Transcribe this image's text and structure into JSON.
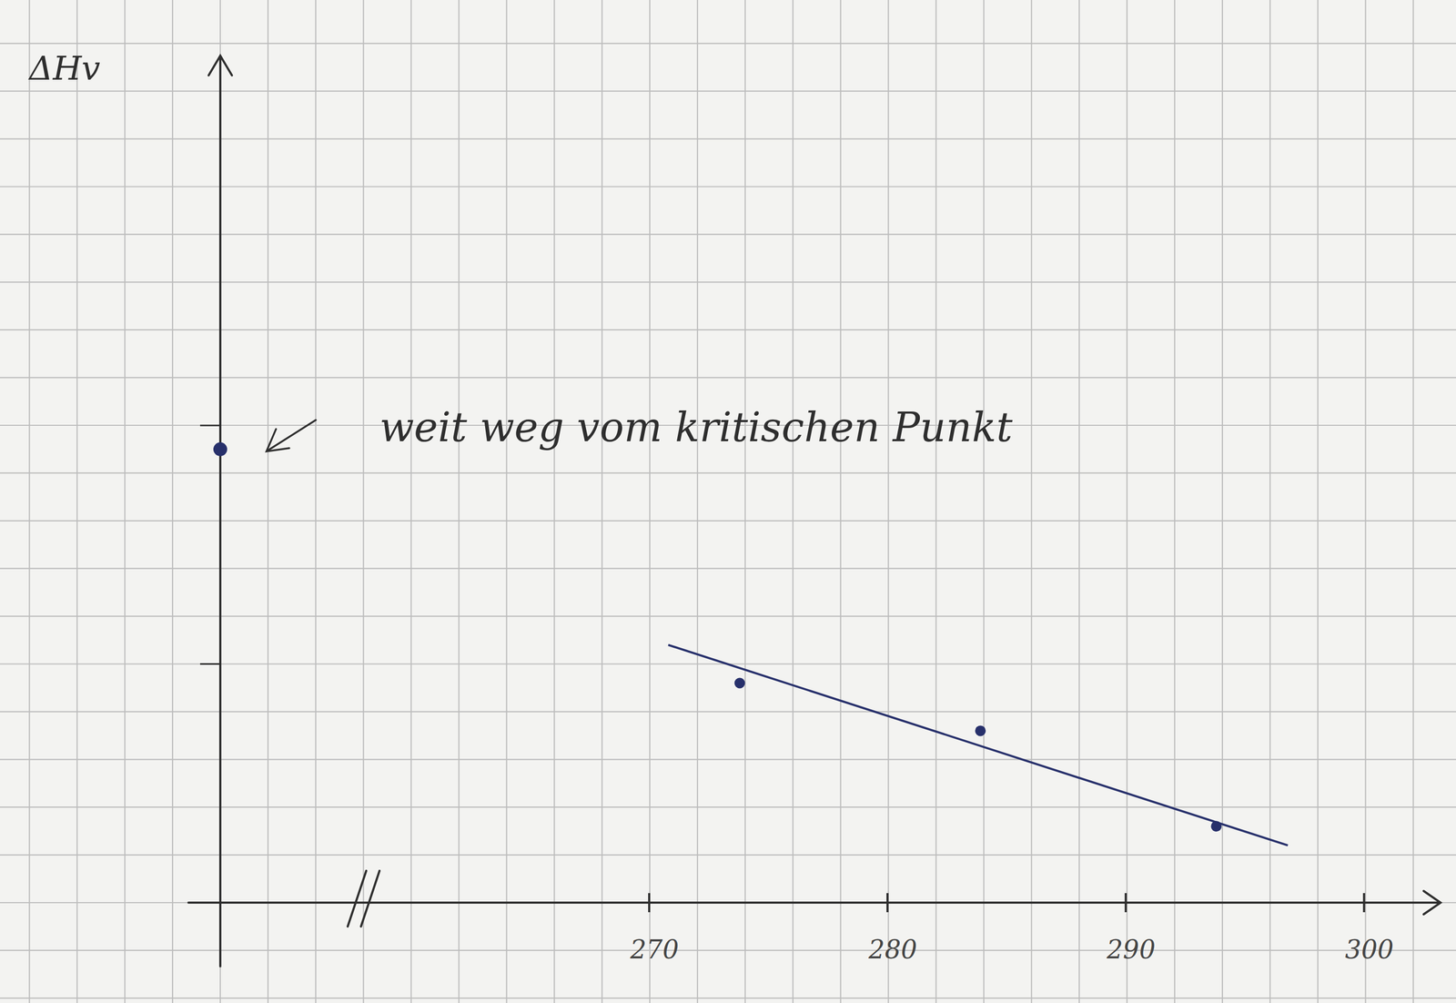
{
  "chart_data": {
    "type": "scatter",
    "y_label": "ΔHv",
    "xlim": [
      252,
      302.5
    ],
    "xticks": [
      270,
      280,
      290,
      300
    ],
    "ylim": [
      0,
      17.5
    ],
    "yticks": [
      5,
      10
    ],
    "tick_labels": "x",
    "series": [
      {
        "type": "scatter",
        "color": "#27306b",
        "marker": "circle",
        "x": [
          273.8,
          283.9,
          293.8
        ],
        "values": [
          4.6,
          3.6,
          1.6
        ]
      },
      {
        "type": "line",
        "color": "#27306b",
        "line_style": "solid",
        "x": [
          270.8,
          296.8
        ],
        "values": [
          5.4,
          1.2
        ]
      }
    ],
    "annotation": {
      "text": "weit weg vom kritischen Punkt",
      "value": 9.5
    }
  }
}
